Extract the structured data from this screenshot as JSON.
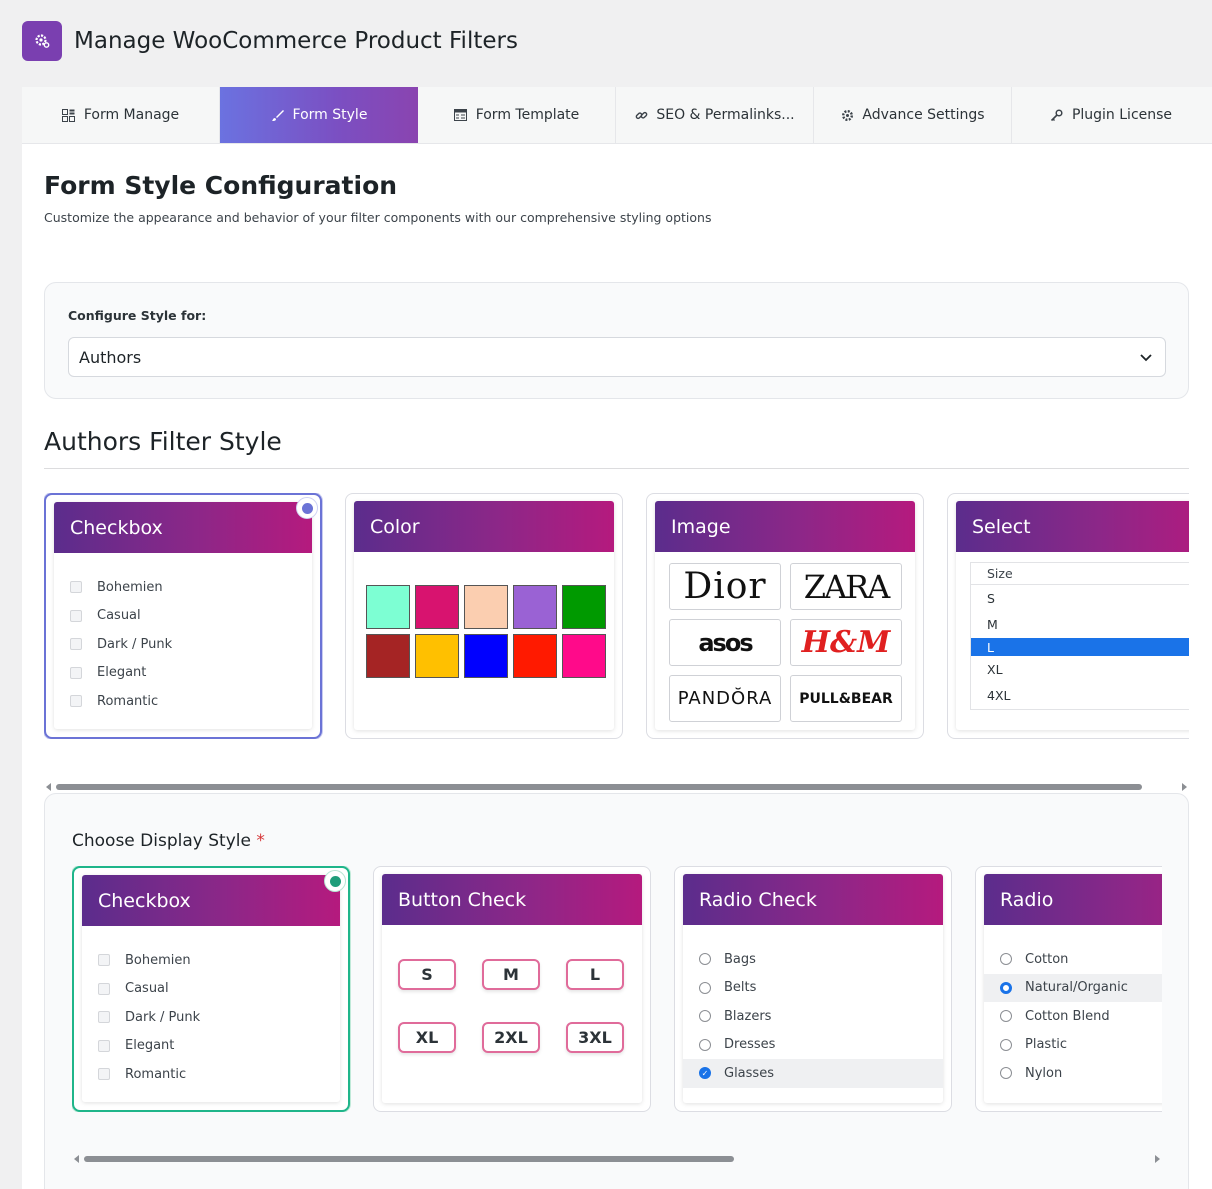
{
  "header": {
    "title": "Manage WooCommerce Product Filters",
    "logo_icon": "gear-icon",
    "logo_color": "#7a3fb0"
  },
  "tabs": [
    {
      "label": "Form Manage",
      "icon": "grid-icon",
      "active": false
    },
    {
      "label": "Form Style",
      "icon": "brush-icon",
      "active": true
    },
    {
      "label": "Form Template",
      "icon": "template-icon",
      "active": false
    },
    {
      "label": "SEO & Permalinks...",
      "icon": "link-icon",
      "active": false
    },
    {
      "label": "Advance Settings",
      "icon": "gear-icon",
      "active": false
    },
    {
      "label": "Plugin License",
      "icon": "key-icon",
      "active": false
    }
  ],
  "main": {
    "title": "Form Style Configuration",
    "subtitle": "Customize the appearance and behavior of your filter components with our comprehensive styling options"
  },
  "config": {
    "label": "Configure Style for:",
    "selected": "Authors"
  },
  "filter_style": {
    "title": "Authors Filter Style",
    "selected": "Checkbox",
    "cards": {
      "checkbox": {
        "title": "Checkbox",
        "items": [
          "Bohemien",
          "Casual",
          "Dark / Punk",
          "Elegant",
          "Romantic"
        ]
      },
      "color": {
        "title": "Color",
        "colors": [
          "#7dffd3",
          "#d8136f",
          "#fbceb0",
          "#9a62d4",
          "#009a00",
          "#a52424",
          "#ffc000",
          "#0000ff",
          "#ff1a00",
          "#ff0a8a"
        ]
      },
      "image": {
        "title": "Image",
        "brands": [
          "Dior",
          "ZARA",
          "asos",
          "H&M",
          "PANDŎRA",
          "PULL&BEAR"
        ]
      },
      "select": {
        "title": "Select",
        "header": "Size",
        "options": [
          "S",
          "M",
          "L",
          "XL",
          "4XL"
        ],
        "highlighted": "L"
      }
    }
  },
  "display_style": {
    "label": "Choose Display Style",
    "required_mark": "*",
    "selected": "Checkbox",
    "cards": {
      "checkbox": {
        "title": "Checkbox",
        "items": [
          "Bohemien",
          "Casual",
          "Dark / Punk",
          "Elegant",
          "Romantic"
        ]
      },
      "button_check": {
        "title": "Button Check",
        "sizes": [
          "S",
          "M",
          "L",
          "XL",
          "2XL",
          "3XL"
        ]
      },
      "radio_check": {
        "title": "Radio Check",
        "items": [
          "Bags",
          "Belts",
          "Blazers",
          "Dresses",
          "Glasses"
        ],
        "checked": "Glasses"
      },
      "radio": {
        "title": "Radio",
        "items": [
          "Cotton",
          "Natural/Organic",
          "Cotton Blend",
          "Plastic",
          "Nylon"
        ],
        "checked": "Natural/Organic"
      }
    }
  }
}
